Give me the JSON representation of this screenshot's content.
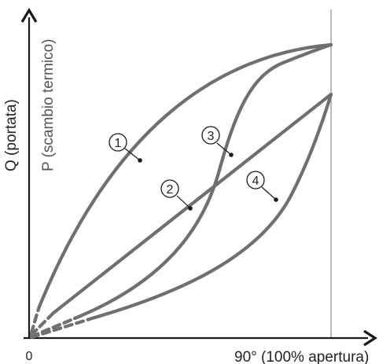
{
  "diagram": {
    "y_label_primary": "Q (portata)",
    "y_label_secondary": "P (scambio termico)",
    "x_origin_label": "0",
    "x_end_label": "90° (100% apertura)",
    "curve_labels": [
      "1",
      "2",
      "3",
      "4"
    ],
    "colors": {
      "curve": "#6f6f6f",
      "axis": "#1a1a1a",
      "guide": "#8c8c8c",
      "marker": "#1a1a1a"
    }
  }
}
